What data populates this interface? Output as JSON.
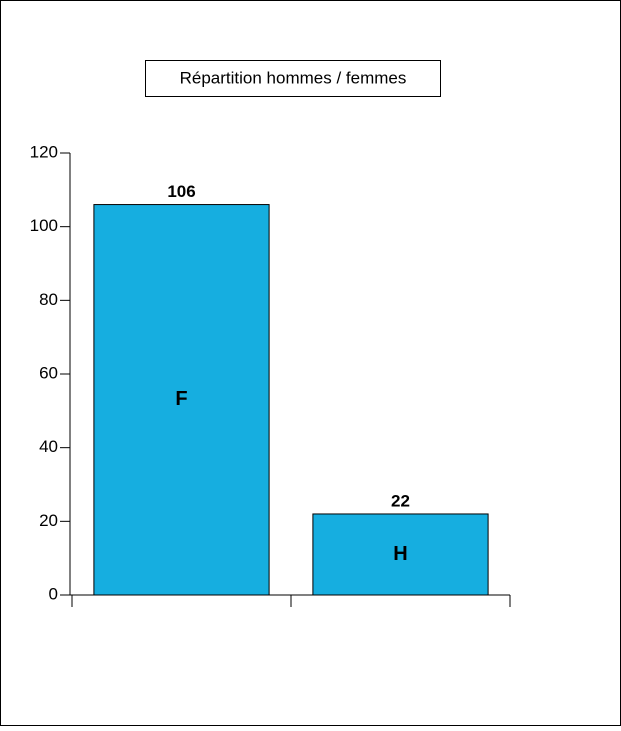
{
  "chart_data": {
    "type": "bar",
    "title": "Répartition hommes / femmes",
    "categories": [
      "F",
      "H"
    ],
    "values": [
      106,
      22
    ],
    "color": "#16aee0",
    "ylim": [
      0,
      120
    ],
    "yticks": [
      0,
      20,
      40,
      60,
      80,
      100,
      120
    ]
  }
}
